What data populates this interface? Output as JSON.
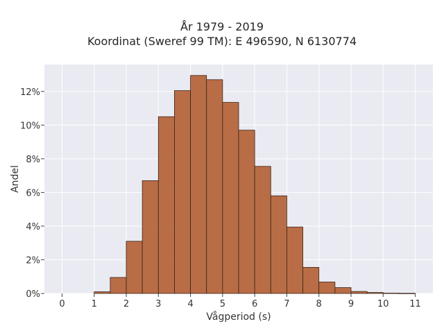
{
  "chart_data": {
    "type": "bar",
    "title": "År 1979 - 2019",
    "subtitle": "Koordinat (Sweref 99 TM): E 496590, N 6130774",
    "xlabel": "Vågperiod (s)",
    "ylabel": "Andel",
    "xlim": [
      -0.55,
      11.55
    ],
    "ylim": [
      0,
      0.136
    ],
    "xticks": [
      0,
      1,
      2,
      3,
      4,
      5,
      6,
      7,
      8,
      9,
      10,
      11
    ],
    "yticks": [
      0,
      0.02,
      0.04,
      0.06,
      0.08,
      0.1,
      0.12
    ],
    "ytick_labels": [
      "0%",
      "2%",
      "4%",
      "6%",
      "8%",
      "10%",
      "12%"
    ],
    "bin_width": 0.5,
    "bins": [
      1.0,
      1.5,
      2.0,
      2.5,
      3.0,
      3.5,
      4.0,
      4.5,
      5.0,
      5.5,
      6.0,
      6.5,
      7.0,
      7.5,
      8.0,
      8.5,
      9.0,
      9.5,
      10.0,
      10.5
    ],
    "values": [
      0.001,
      0.0095,
      0.031,
      0.067,
      0.105,
      0.1205,
      0.1295,
      0.127,
      0.1135,
      0.097,
      0.0755,
      0.058,
      0.0395,
      0.0155,
      0.0068,
      0.0035,
      0.0012,
      0.0006,
      0.0002,
      0.0001
    ],
    "grid": true,
    "colors": {
      "bar": "#b5663c",
      "edge": "#3a2418",
      "background": "#eaeaf2",
      "grid": "#ffffff"
    }
  }
}
